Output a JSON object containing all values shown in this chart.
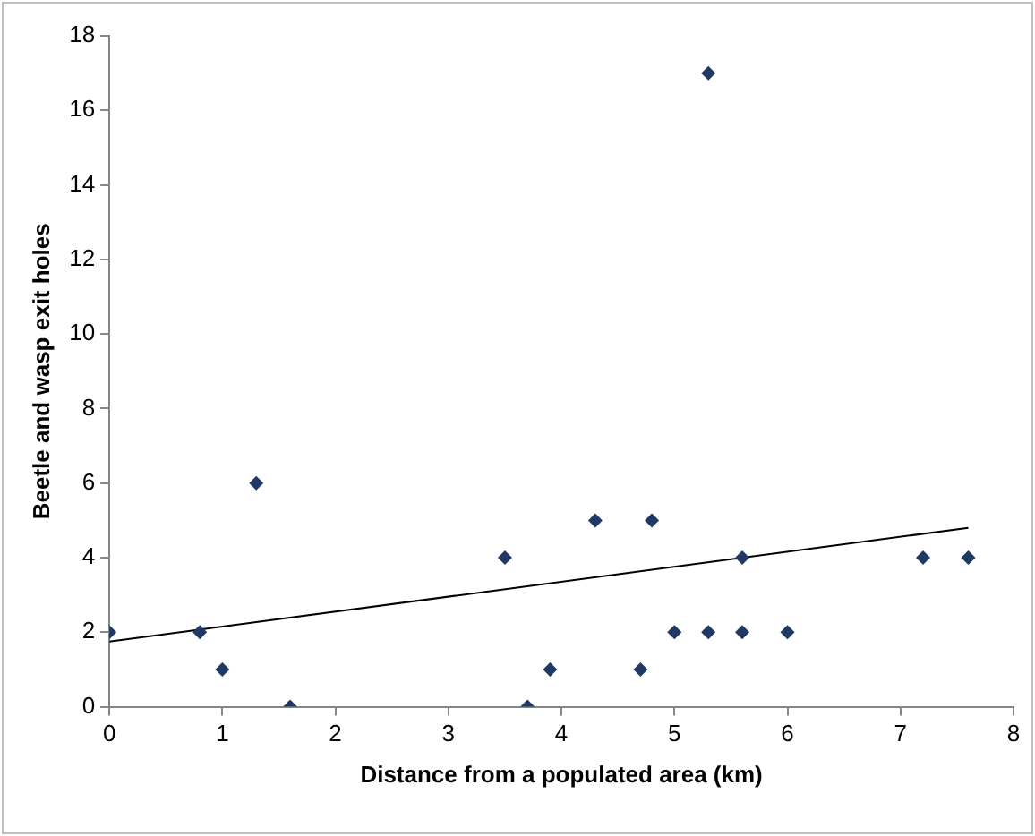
{
  "chart_data": {
    "type": "scatter",
    "xlabel": "Distance from a populated area (km)",
    "ylabel": "Beetle and wasp exit holes",
    "xlim": [
      0,
      8
    ],
    "xticks": [
      0,
      1,
      2,
      3,
      4,
      5,
      6,
      7,
      8
    ],
    "ylim": [
      0,
      18
    ],
    "yticks": [
      0,
      2,
      4,
      6,
      8,
      10,
      12,
      14,
      16,
      18
    ],
    "grid": false,
    "legend": false,
    "series": [
      {
        "marker": "diamond",
        "color": "#1f3864",
        "x": [
          0,
          0.8,
          1,
          1.3,
          1.6,
          3.5,
          3.7,
          3.9,
          4.3,
          4.7,
          4.8,
          5,
          5.3,
          5.3,
          5.6,
          5.6,
          6,
          7.2,
          7.6
        ],
        "values": [
          2,
          2,
          1,
          6,
          0,
          4,
          0,
          1,
          5,
          1,
          5,
          2,
          17,
          2,
          4,
          2,
          2,
          4,
          4
        ]
      },
      {
        "type": "line",
        "marker": "none",
        "color": "#000000",
        "x": [
          0,
          7.6
        ],
        "values": [
          1.75,
          4.8
        ]
      }
    ]
  }
}
